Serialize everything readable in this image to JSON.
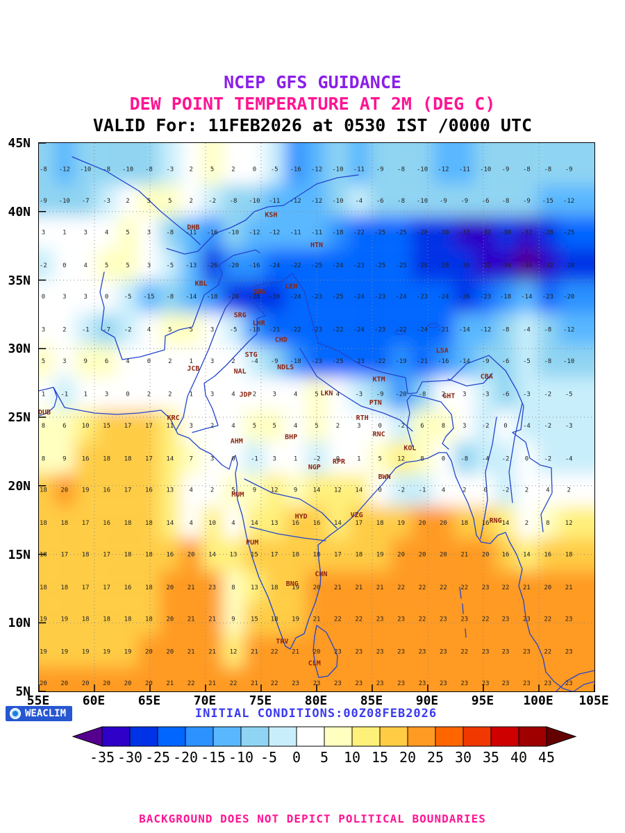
{
  "title": {
    "line1": "NCEP GFS GUIDANCE",
    "line2": "DEW POINT TEMPERATURE AT 2M (DEG C)",
    "line3": "VALID For: 11FEB2026 at 0530 IST /0000 UTC"
  },
  "branding": {
    "logo": "WEACLIM",
    "initial_conditions": "INITIAL CONDITIONS:00Z08FEB2026"
  },
  "disclaimer": "BACKGROUND DOES NOT DEPICT POLITICAL BOUNDARIES",
  "colors": {
    "title1": "#8b1fe8",
    "title2": "#ff1493",
    "title3": "#000000",
    "initial": "#3a3af2",
    "disclaimer": "#ff1493",
    "station": "#8b2512",
    "grid_value": "#222222",
    "coast": "#2244cc",
    "gridline": "#8a8a8a",
    "logo_bg": "#2757d1"
  },
  "axis": {
    "lat_ticks": [
      {
        "label": "45N",
        "lat": 45
      },
      {
        "label": "40N",
        "lat": 40
      },
      {
        "label": "35N",
        "lat": 35
      },
      {
        "label": "30N",
        "lat": 30
      },
      {
        "label": "25N",
        "lat": 25
      },
      {
        "label": "20N",
        "lat": 20
      },
      {
        "label": "15N",
        "lat": 15
      },
      {
        "label": "10N",
        "lat": 10
      },
      {
        "label": "5N",
        "lat": 5
      }
    ],
    "lon_ticks": [
      {
        "label": "55E",
        "lon": 55
      },
      {
        "label": "60E",
        "lon": 60
      },
      {
        "label": "65E",
        "lon": 65
      },
      {
        "label": "70E",
        "lon": 70
      },
      {
        "label": "75E",
        "lon": 75
      },
      {
        "label": "80E",
        "lon": 80
      },
      {
        "label": "85E",
        "lon": 85
      },
      {
        "label": "90E",
        "lon": 90
      },
      {
        "label": "95E",
        "lon": 95
      },
      {
        "label": "100E",
        "lon": 100
      },
      {
        "label": "105E",
        "lon": 105
      }
    ]
  },
  "colorbar": {
    "labels": [
      "-35",
      "-30",
      "-25",
      "-20",
      "-15",
      "-10",
      "-5",
      "0",
      "5",
      "10",
      "15",
      "20",
      "25",
      "30",
      "35",
      "40",
      "45"
    ],
    "segments": [
      "#2e00c8",
      "#0033e6",
      "#0066ff",
      "#2b92ff",
      "#59b7ff",
      "#8fd4f2",
      "#c8eefb",
      "#ffffff",
      "#ffffc0",
      "#fff07a",
      "#ffcc44",
      "#ff9a22",
      "#ff6600",
      "#f03800",
      "#cf0000",
      "#9e0000"
    ],
    "arrow_left": "#55008f",
    "arrow_right": "#640000"
  },
  "stations": [
    {
      "code": "KSH",
      "lon": 75.9,
      "lat": 39.6
    },
    {
      "code": "DHB",
      "lon": 68.9,
      "lat": 38.7
    },
    {
      "code": "HTN",
      "lon": 80.0,
      "lat": 37.4
    },
    {
      "code": "KBL",
      "lon": 69.6,
      "lat": 34.6
    },
    {
      "code": "SRN",
      "lon": 74.9,
      "lat": 34.0
    },
    {
      "code": "LEH",
      "lon": 77.7,
      "lat": 34.4
    },
    {
      "code": "SRG",
      "lon": 73.1,
      "lat": 32.3
    },
    {
      "code": "LHR",
      "lon": 74.8,
      "lat": 31.7
    },
    {
      "code": "CHD",
      "lon": 76.8,
      "lat": 30.5
    },
    {
      "code": "STG",
      "lon": 74.1,
      "lat": 29.4
    },
    {
      "code": "JCB",
      "lon": 68.9,
      "lat": 28.4
    },
    {
      "code": "NAL",
      "lon": 73.1,
      "lat": 28.2
    },
    {
      "code": "NDLS",
      "lon": 77.2,
      "lat": 28.5
    },
    {
      "code": "LSA",
      "lon": 91.3,
      "lat": 29.7
    },
    {
      "code": "KTM",
      "lon": 85.6,
      "lat": 27.6
    },
    {
      "code": "CBA",
      "lon": 95.3,
      "lat": 27.8
    },
    {
      "code": "JDP",
      "lon": 73.6,
      "lat": 26.5
    },
    {
      "code": "LKN",
      "lon": 80.9,
      "lat": 26.6
    },
    {
      "code": "PTN",
      "lon": 85.3,
      "lat": 25.9
    },
    {
      "code": "GHT",
      "lon": 91.9,
      "lat": 26.4
    },
    {
      "code": "DUB",
      "lon": 55.5,
      "lat": 25.2
    },
    {
      "code": "KRC",
      "lon": 67.1,
      "lat": 24.8
    },
    {
      "code": "RTH",
      "lon": 84.1,
      "lat": 24.8
    },
    {
      "code": "AHM",
      "lon": 72.8,
      "lat": 23.1
    },
    {
      "code": "BHP",
      "lon": 77.7,
      "lat": 23.4
    },
    {
      "code": "RNC",
      "lon": 85.6,
      "lat": 23.6
    },
    {
      "code": "KOL",
      "lon": 88.4,
      "lat": 22.6
    },
    {
      "code": "RPR",
      "lon": 82.0,
      "lat": 21.6
    },
    {
      "code": "NGP",
      "lon": 79.8,
      "lat": 21.2
    },
    {
      "code": "BWN",
      "lon": 86.1,
      "lat": 20.5
    },
    {
      "code": "MUM",
      "lon": 72.9,
      "lat": 19.2
    },
    {
      "code": "HYD",
      "lon": 78.6,
      "lat": 17.6
    },
    {
      "code": "VZG",
      "lon": 83.6,
      "lat": 17.7
    },
    {
      "code": "RNG",
      "lon": 96.1,
      "lat": 17.3
    },
    {
      "code": "PUM",
      "lon": 74.2,
      "lat": 15.7
    },
    {
      "code": "CHN",
      "lon": 80.4,
      "lat": 13.4
    },
    {
      "code": "BNG",
      "lon": 77.8,
      "lat": 12.7
    },
    {
      "code": "TRV",
      "lon": 76.9,
      "lat": 8.5
    },
    {
      "code": "CLM",
      "lon": 79.8,
      "lat": 6.9
    }
  ],
  "chart_data": {
    "type": "heatmap",
    "title": "Dew point temperature at 2 m",
    "units": "deg C",
    "lon_min": 55,
    "lon_max": 105,
    "lat_min": 5,
    "lat_max": 45,
    "levels": [
      -35,
      -30,
      -25,
      -20,
      -15,
      -10,
      -5,
      0,
      5,
      10,
      15,
      20,
      25,
      30,
      35,
      40,
      45
    ],
    "grid_lons": [
      55.4,
      57.3,
      59.2,
      61.1,
      63.0,
      64.9,
      66.8,
      68.7,
      70.6,
      72.5,
      74.4,
      76.2,
      78.1,
      80.0,
      81.9,
      83.8,
      85.7,
      87.6,
      89.5,
      91.4,
      93.3,
      95.2,
      97.0,
      98.9,
      100.8,
      102.7
    ],
    "grid_lats": [
      43.1,
      40.8,
      38.5,
      36.1,
      33.8,
      31.4,
      29.1,
      26.7,
      24.4,
      22.0,
      19.7,
      17.3,
      15.0,
      12.6,
      10.3,
      7.9,
      5.6
    ],
    "values": [
      [
        -8,
        -12,
        -10,
        -8,
        -10,
        -8,
        -3,
        2,
        5,
        2,
        0,
        -5,
        -16,
        -12,
        -10,
        -11,
        -9,
        -8,
        -10,
        -12,
        -11,
        -10,
        -9,
        -8,
        -8,
        -9
      ],
      [
        -9,
        -10,
        -7,
        -3,
        2,
        5,
        5,
        2,
        -2,
        -8,
        -10,
        -11,
        -12,
        -12,
        -10,
        -4,
        -6,
        -8,
        -10,
        -9,
        -9,
        -6,
        -8,
        -9,
        -15,
        -12
      ],
      [
        3,
        1,
        3,
        4,
        5,
        3,
        -8,
        -11,
        -16,
        -10,
        -12,
        -12,
        -11,
        -11,
        -18,
        -22,
        -25,
        -25,
        -28,
        -30,
        -33,
        -32,
        -30,
        -32,
        -28,
        -25
      ],
      [
        -2,
        0,
        4,
        5,
        5,
        3,
        -5,
        -13,
        -26,
        -20,
        -16,
        -24,
        -22,
        -25,
        -24,
        -23,
        -25,
        -25,
        -26,
        -28,
        -30,
        -32,
        -34,
        -36,
        -32,
        -28
      ],
      [
        0,
        3,
        3,
        0,
        -5,
        -15,
        -8,
        -14,
        -18,
        -26,
        -28,
        -30,
        -24,
        -23,
        -25,
        -24,
        -23,
        -24,
        -23,
        -24,
        -26,
        -23,
        -18,
        -14,
        -23,
        -20
      ],
      [
        3,
        2,
        -1,
        -7,
        -2,
        4,
        5,
        5,
        3,
        -5,
        -18,
        -21,
        -22,
        -23,
        -22,
        -24,
        -23,
        -22,
        -24,
        -21,
        -14,
        -12,
        -8,
        -4,
        -8,
        -12
      ],
      [
        5,
        3,
        9,
        6,
        4,
        0,
        2,
        1,
        3,
        2,
        -4,
        -9,
        -18,
        -23,
        -25,
        -23,
        -22,
        -19,
        -21,
        -16,
        -14,
        -9,
        -6,
        -5,
        -8,
        -10
      ],
      [
        1,
        -1,
        1,
        3,
        0,
        2,
        2,
        1,
        3,
        4,
        2,
        3,
        4,
        5,
        4,
        -3,
        -9,
        -20,
        -8,
        2,
        3,
        -3,
        -6,
        -3,
        -2,
        -5
      ],
      [
        8,
        6,
        10,
        15,
        17,
        17,
        11,
        3,
        2,
        4,
        5,
        5,
        4,
        5,
        2,
        3,
        0,
        -2,
        6,
        8,
        3,
        -2,
        0,
        -4,
        -2,
        -3
      ],
      [
        8,
        9,
        16,
        18,
        18,
        17,
        14,
        7,
        3,
        0,
        -1,
        3,
        1,
        -2,
        0,
        1,
        5,
        12,
        8,
        0,
        -8,
        -4,
        -2,
        0,
        -2,
        -4
      ],
      [
        18,
        20,
        19,
        16,
        17,
        16,
        13,
        4,
        2,
        5,
        9,
        12,
        9,
        14,
        12,
        14,
        0,
        -2,
        -1,
        4,
        2,
        0,
        -2,
        2,
        4,
        2
      ],
      [
        18,
        18,
        17,
        16,
        18,
        18,
        14,
        4,
        10,
        4,
        14,
        13,
        16,
        16,
        14,
        17,
        18,
        19,
        20,
        20,
        18,
        16,
        14,
        2,
        8,
        12
      ],
      [
        18,
        17,
        18,
        17,
        18,
        18,
        16,
        20,
        14,
        13,
        15,
        17,
        18,
        18,
        17,
        18,
        19,
        20,
        20,
        20,
        21,
        20,
        16,
        14,
        16,
        18
      ],
      [
        18,
        18,
        17,
        17,
        16,
        18,
        20,
        21,
        23,
        8,
        13,
        18,
        19,
        20,
        21,
        21,
        21,
        22,
        22,
        22,
        22,
        23,
        22,
        21,
        20,
        21
      ],
      [
        19,
        19,
        18,
        18,
        18,
        18,
        20,
        21,
        21,
        9,
        15,
        18,
        19,
        21,
        22,
        22,
        23,
        23,
        22,
        23,
        23,
        22,
        23,
        23,
        22,
        23
      ],
      [
        19,
        19,
        19,
        19,
        19,
        20,
        20,
        21,
        21,
        12,
        21,
        22,
        21,
        20,
        23,
        23,
        23,
        23,
        23,
        23,
        22,
        23,
        23,
        23,
        22,
        23
      ],
      [
        20,
        20,
        20,
        20,
        20,
        20,
        21,
        22,
        21,
        22,
        21,
        22,
        23,
        23,
        23,
        23,
        23,
        23,
        23,
        23,
        23,
        23,
        23,
        23,
        23,
        23
      ]
    ]
  }
}
